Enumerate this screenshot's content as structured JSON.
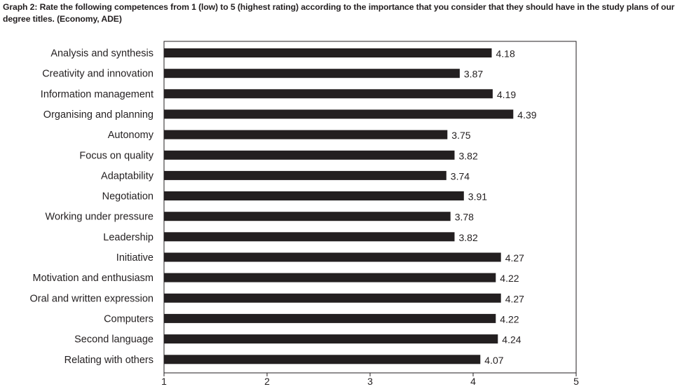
{
  "title": {
    "lead": "Graph 2:",
    "text": "Rate the following competences from 1 (low) to 5 (highest rating) according to the importance that you consider that they should have in the study plans of our degree titles. (Economy, ADE)"
  },
  "chart_data": {
    "type": "bar",
    "orientation": "horizontal",
    "categories": [
      "Analysis and synthesis",
      "Creativity and innovation",
      "Information management",
      "Organising and planning",
      "Autonomy",
      "Focus on quality",
      "Adaptability",
      "Negotiation",
      "Working under pressure",
      "Leadership",
      "Initiative",
      "Motivation and enthusiasm",
      "Oral and written expression",
      "Computers",
      "Second language",
      "Relating with others"
    ],
    "values": [
      4.18,
      3.87,
      4.19,
      4.39,
      3.75,
      3.82,
      3.74,
      3.91,
      3.78,
      3.82,
      4.27,
      4.22,
      4.27,
      4.22,
      4.24,
      4.07
    ],
    "value_labels": [
      "4.18",
      "3.87",
      "4.19",
      "4.39",
      "3.75",
      "3.82",
      "3.74",
      "3.91",
      "3.78",
      "3.82",
      "4.27",
      "4.22",
      "4.27",
      "4.22",
      "4.24",
      "4.07"
    ],
    "xlim": [
      1,
      5
    ],
    "xticks": [
      1,
      2,
      3,
      4,
      5
    ],
    "xtick_labels": [
      "1",
      "2",
      "3",
      "4",
      "5"
    ],
    "bar_color": "#231f20",
    "grid": false,
    "legend": "none"
  }
}
